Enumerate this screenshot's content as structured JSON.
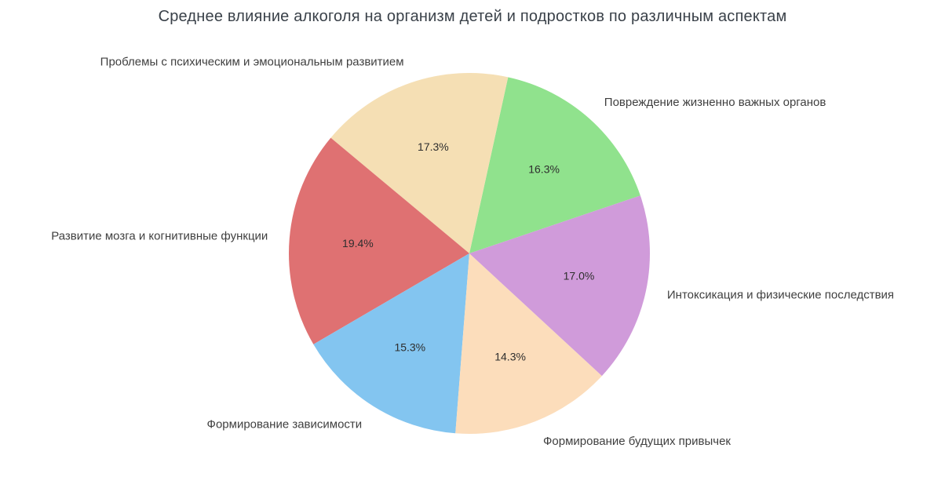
{
  "title": "Среднее влияние алкоголя на организм детей и подростков по различным аспектам",
  "chart_data": {
    "type": "pie",
    "title": "Среднее влияние алкоголя на организм детей и подростков по различным аспектам",
    "legend": "none",
    "label_position": "outside",
    "percent_position": "inside",
    "direction": "counterclockwise",
    "start_angle_deg": 18.7,
    "slices": [
      {
        "label": "Повреждение жизненно важных органов",
        "value": 16.3,
        "pct_label": "16.3%",
        "color": "#90e28d"
      },
      {
        "label": "Проблемы с психическим и эмоциональным развитием",
        "value": 17.3,
        "pct_label": "17.3%",
        "color": "#f5dfb4"
      },
      {
        "label": "Развитие мозга и когнитивные функции",
        "value": 19.4,
        "pct_label": "19.4%",
        "color": "#df7172"
      },
      {
        "label": "Формирование зависимости",
        "value": 15.3,
        "pct_label": "15.3%",
        "color": "#83c5f0"
      },
      {
        "label": "Формирование будущих привычек",
        "value": 14.3,
        "pct_label": "14.3%",
        "color": "#fcddbb"
      },
      {
        "label": "Интоксикация и физические последствия",
        "value": 17.0,
        "pct_label": "17.0%",
        "color": "#d09bda"
      }
    ]
  }
}
